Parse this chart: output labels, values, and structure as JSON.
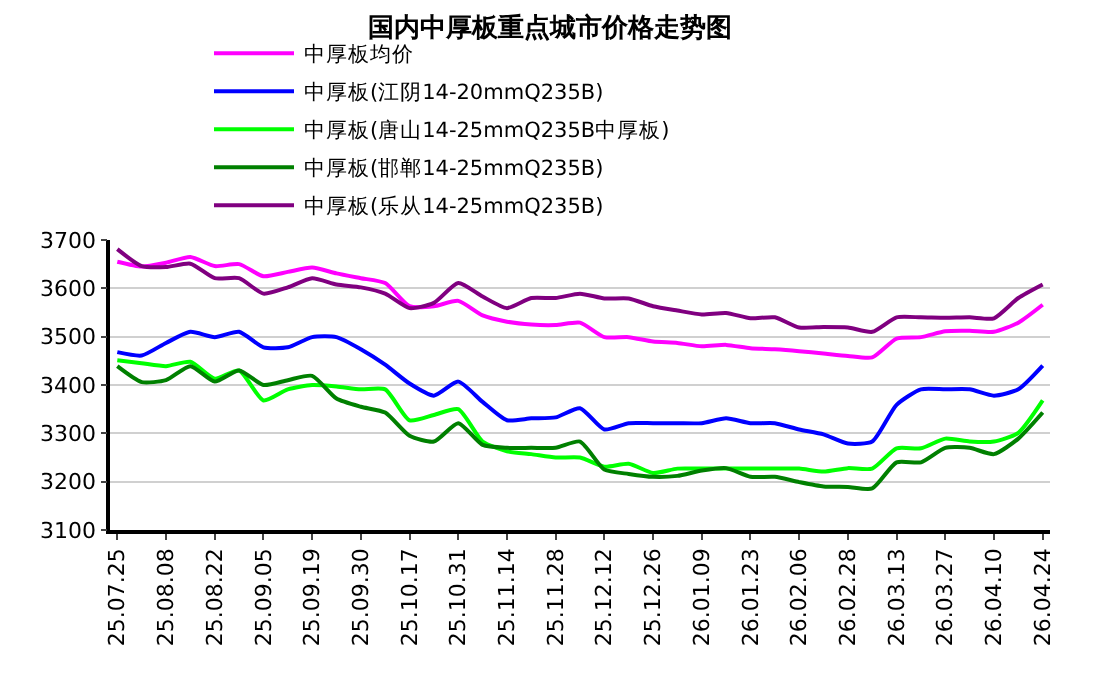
{
  "chart_data": {
    "type": "line",
    "title": "国内中厚板重点城市价格走势图",
    "categories": [
      "25.07.25",
      null,
      "25.08.08",
      null,
      "25.08.22",
      null,
      "25.09.05",
      null,
      "25.09.19",
      null,
      "25.09.30",
      null,
      "25.10.17",
      null,
      "25.10.31",
      null,
      "25.11.14",
      null,
      "25.11.28",
      null,
      "25.12.12",
      null,
      "25.12.26",
      null,
      "26.01.09",
      null,
      "26.01.23",
      null,
      "26.02.06",
      null,
      "26.02.28",
      null,
      "26.03.13",
      null,
      "26.03.27",
      null,
      "26.04.10",
      null,
      "26.04.24"
    ],
    "series": [
      {
        "name": "中厚板均价",
        "color": "#ff00ff",
        "values": [
          3655,
          3645,
          3653,
          3665,
          3646,
          3650,
          3625,
          3634,
          3643,
          3631,
          3621,
          3611,
          3563,
          3563,
          3574,
          3544,
          3531,
          3525,
          3524,
          3529,
          3499,
          3499,
          3490,
          3487,
          3480,
          3483,
          3476,
          3474,
          3470,
          3465,
          3460,
          3457,
          3496,
          3499,
          3511,
          3512,
          3510,
          3529,
          3566
        ]
      },
      {
        "name": "中厚板(江阴14-20mmQ235B)",
        "color": "#0000ff",
        "values": [
          3468,
          3461,
          3487,
          3510,
          3499,
          3510,
          3478,
          3478,
          3499,
          3499,
          3474,
          3442,
          3403,
          3378,
          3407,
          3365,
          3327,
          3331,
          3333,
          3352,
          3308,
          3321,
          3321,
          3321,
          3321,
          3331,
          3321,
          3321,
          3308,
          3298,
          3279,
          3283,
          3359,
          3391,
          3391,
          3391,
          3378,
          3391,
          3440
        ]
      },
      {
        "name": "中厚板(唐山14-25mmQ235B中厚板)",
        "color": "#00ff00",
        "values": [
          3451,
          3445,
          3439,
          3448,
          3413,
          3430,
          3368,
          3391,
          3400,
          3397,
          3391,
          3391,
          3327,
          3338,
          3350,
          3283,
          3263,
          3257,
          3250,
          3250,
          3231,
          3237,
          3218,
          3227,
          3227,
          3227,
          3227,
          3227,
          3227,
          3221,
          3228,
          3227,
          3269,
          3269,
          3289,
          3283,
          3283,
          3301,
          3368
        ]
      },
      {
        "name": "中厚板(邯郸14-25mmQ235B)",
        "color": "#008000",
        "values": [
          3439,
          3406,
          3410,
          3439,
          3407,
          3430,
          3400,
          3410,
          3419,
          3372,
          3355,
          3343,
          3295,
          3283,
          3321,
          3276,
          3270,
          3270,
          3270,
          3283,
          3225,
          3216,
          3210,
          3212,
          3223,
          3228,
          3210,
          3210,
          3199,
          3190,
          3189,
          3186,
          3240,
          3240,
          3270,
          3270,
          3257,
          3289,
          3343
        ]
      },
      {
        "name": "中厚板(乐从14-25mmQ235B)",
        "color": "#800080",
        "values": [
          3681,
          3646,
          3644,
          3651,
          3621,
          3621,
          3589,
          3602,
          3621,
          3608,
          3602,
          3589,
          3559,
          3570,
          3611,
          3583,
          3559,
          3580,
          3580,
          3589,
          3579,
          3579,
          3563,
          3554,
          3546,
          3549,
          3538,
          3540,
          3519,
          3520,
          3519,
          3510,
          3540,
          3540,
          3539,
          3540,
          3538,
          3580,
          3608
        ]
      }
    ],
    "ylim": [
      3100,
      3700
    ],
    "yticks": [
      3100,
      3200,
      3300,
      3400,
      3500,
      3600,
      3700
    ],
    "grid": "y",
    "legend": "top",
    "marker": "none",
    "line_style": "solid"
  }
}
